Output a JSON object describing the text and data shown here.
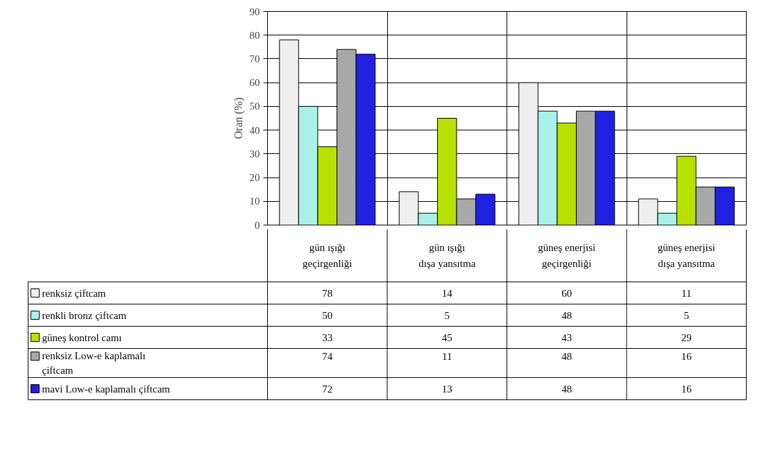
{
  "chart_data": {
    "type": "bar",
    "ylabel": "Oran (%)",
    "categories": [
      "gün ışığı geçirgenliği",
      "gün ışığı dışa yansıtma",
      "güneş enerjisi geçirgenliği",
      "güneş enerjisi dışa yansıtma"
    ],
    "series": [
      {
        "name": "renksiz çiftcam",
        "color": "#eeeeee",
        "values": [
          78,
          14,
          60,
          11
        ]
      },
      {
        "name": "renkli bronz çiftcam",
        "color": "#a8f0e8",
        "values": [
          50,
          5,
          48,
          5
        ]
      },
      {
        "name": "güneş kontrol camı",
        "color": "#b8e000",
        "values": [
          33,
          45,
          43,
          29
        ]
      },
      {
        "name": "renksiz Low-e kaplamalı çiftcam",
        "color": "#a8a8a8",
        "values": [
          74,
          11,
          48,
          16
        ]
      },
      {
        "name": "mavi Low-e kaplamalı çiftcam",
        "color": "#2020e0",
        "values": [
          72,
          13,
          48,
          16
        ]
      }
    ],
    "ylim": [
      0,
      90
    ],
    "yticks": [
      0,
      10,
      20,
      30,
      40,
      50,
      60,
      70,
      80,
      90
    ],
    "grid": true,
    "legend": "bottom",
    "data_labels": true
  }
}
